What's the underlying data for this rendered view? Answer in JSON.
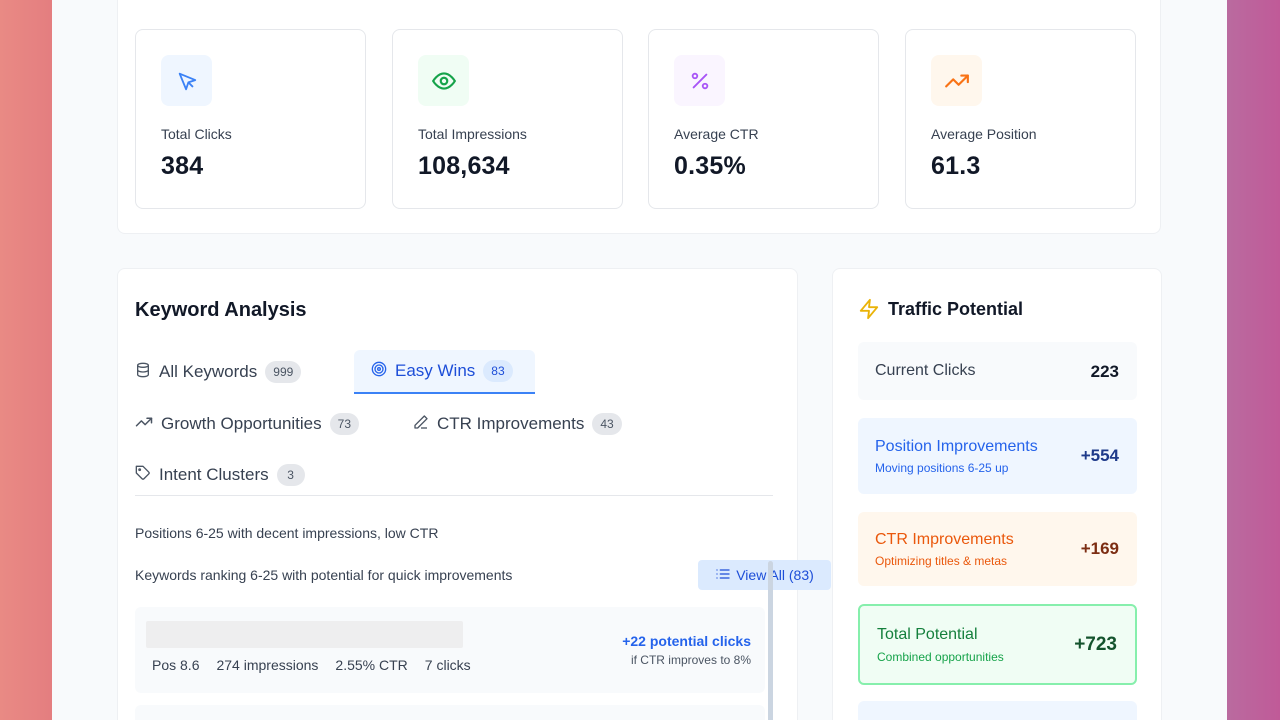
{
  "stats": [
    {
      "label": "Total Clicks",
      "value": "384",
      "icon": "cursor-icon",
      "color": "#3b82f6",
      "bg": "#eff6ff"
    },
    {
      "label": "Total Impressions",
      "value": "108,634",
      "icon": "eye-icon",
      "color": "#16a34a",
      "bg": "#f0fdf4"
    },
    {
      "label": "Average CTR",
      "value": "0.35%",
      "icon": "percent-icon",
      "color": "#a855f7",
      "bg": "#faf5ff"
    },
    {
      "label": "Average Position",
      "value": "61.3",
      "icon": "trending-up-icon",
      "color": "#f97316",
      "bg": "#fff7ed"
    }
  ],
  "keyword_analysis": {
    "title": "Keyword Analysis",
    "tabs": [
      {
        "label": "All Keywords",
        "count": "999",
        "icon": "database-icon"
      },
      {
        "label": "Easy Wins",
        "count": "83",
        "icon": "target-icon",
        "active": true
      },
      {
        "label": "Growth Opportunities",
        "count": "73",
        "icon": "trending-up-icon"
      },
      {
        "label": "CTR Improvements",
        "count": "43",
        "icon": "pencil-icon"
      },
      {
        "label": "Intent Clusters",
        "count": "3",
        "icon": "tag-icon"
      }
    ],
    "description": "Positions 6-25 with decent impressions, low CTR",
    "subdescription": "Keywords ranking 6-25 with potential for quick improvements",
    "view_all_label": "View All (83)",
    "rows": [
      {
        "position": "Pos 8.6",
        "impressions": "274 impressions",
        "ctr": "2.55% CTR",
        "clicks": "7 clicks",
        "potential": "+22 potential clicks",
        "potential_note": "if CTR improves to 8%"
      }
    ]
  },
  "traffic_potential": {
    "title": "Traffic Potential",
    "current": {
      "label": "Current Clicks",
      "value": "223"
    },
    "position": {
      "label": "Position Improvements",
      "sub": "Moving positions 6-25 up",
      "value": "+554"
    },
    "ctr": {
      "label": "CTR Improvements",
      "sub": "Optimizing titles & metas",
      "value": "+169"
    },
    "total": {
      "label": "Total Potential",
      "sub": "Combined opportunities",
      "value": "+723"
    }
  }
}
